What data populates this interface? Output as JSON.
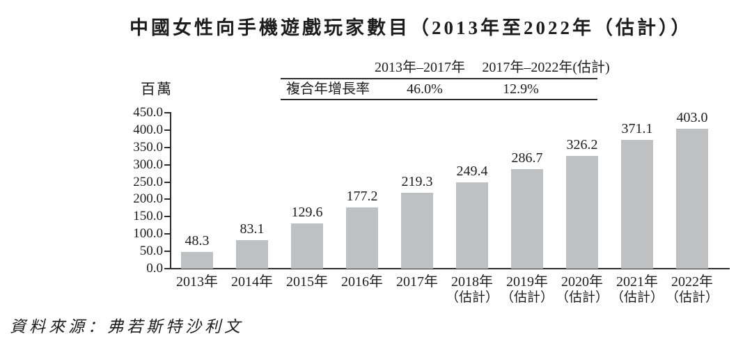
{
  "title": "中國女性向手機遊戲玩家數目（2013年至2022年（估計））",
  "cagr_table": {
    "row_label": "複合年增長率",
    "periods": [
      "2013年–2017年",
      "2017年–2022年(估計)"
    ],
    "values": [
      "46.0%",
      "12.9%"
    ]
  },
  "source": "資料來源：弗若斯特沙利文",
  "chart_data": {
    "type": "bar",
    "title": "中國女性向手機遊戲玩家數目（2013年至2022年（估計））",
    "unit_label": "百萬",
    "categories": [
      "2013年",
      "2014年",
      "2015年",
      "2016年",
      "2017年",
      "2018年",
      "2019年",
      "2020年",
      "2021年",
      "2022年"
    ],
    "category_notes": [
      "",
      "",
      "",
      "",
      "",
      "（估計）",
      "（估計）",
      "（估計）",
      "（估計）",
      "（估計）"
    ],
    "values": [
      48.3,
      83.1,
      129.6,
      177.2,
      219.3,
      249.4,
      286.7,
      326.2,
      371.1,
      403.0
    ],
    "ylim": [
      0,
      450
    ],
    "y_tick_labels": [
      "450.0",
      "400.0",
      "350.0",
      "300.0",
      "250.0",
      "200.0",
      "150.0",
      "100.0",
      "50.0",
      "0.0"
    ],
    "grid": false,
    "legend": "none",
    "bar_color": "#bfc0c2",
    "cagr": [
      {
        "period": "2013年–2017年",
        "value": "46.0%"
      },
      {
        "period": "2017年–2022年(估計)",
        "value": "12.9%"
      }
    ]
  }
}
